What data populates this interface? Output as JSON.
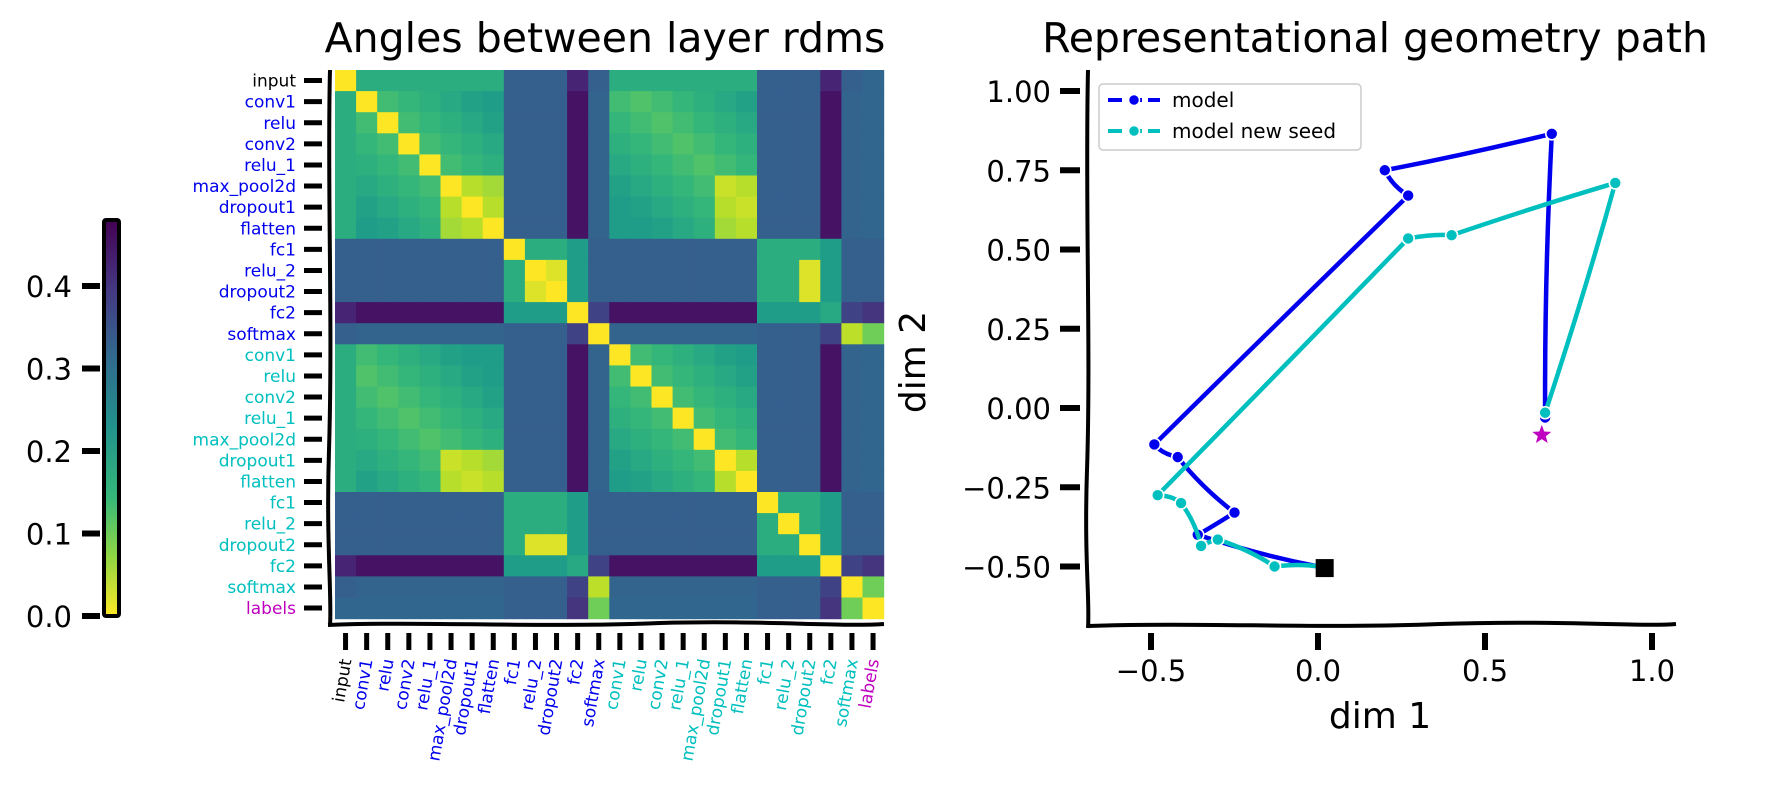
{
  "chart_data": [
    {
      "type": "heatmap",
      "title": "Angles between layer rdms",
      "row_labels": [
        "input",
        "conv1",
        "relu",
        "conv2",
        "relu_1",
        "max_pool2d",
        "dropout1",
        "flatten",
        "fc1",
        "relu_2",
        "dropout2",
        "fc2",
        "softmax",
        "conv1",
        "relu",
        "conv2",
        "relu_1",
        "max_pool2d",
        "dropout1",
        "flatten",
        "fc1",
        "relu_2",
        "dropout2",
        "fc2",
        "softmax",
        "labels"
      ],
      "col_labels": [
        "input",
        "conv1",
        "relu",
        "conv2",
        "relu_1",
        "max_pool2d",
        "dropout1",
        "flatten",
        "fc1",
        "relu_2",
        "dropout2",
        "fc2",
        "softmax",
        "conv1",
        "relu",
        "conv2",
        "relu_1",
        "max_pool2d",
        "dropout1",
        "flatten",
        "fc1",
        "relu_2",
        "dropout2",
        "fc2",
        "softmax",
        "labels"
      ],
      "label_groups": [
        "input",
        "model",
        "model",
        "model",
        "model",
        "model",
        "model",
        "model",
        "model",
        "model",
        "model",
        "model",
        "model",
        "new_seed",
        "new_seed",
        "new_seed",
        "new_seed",
        "new_seed",
        "new_seed",
        "new_seed",
        "new_seed",
        "new_seed",
        "new_seed",
        "new_seed",
        "new_seed",
        "labels"
      ],
      "label_colors": {
        "input": "#000000",
        "model": "#0000ee",
        "new_seed": "#00bfbf",
        "labels": "#c000c0"
      },
      "layer_types": [
        "input",
        "conv",
        "conv",
        "conv",
        "conv",
        "conv",
        "conv",
        "conv",
        "fc",
        "fc",
        "fc",
        "fc2",
        "softmax",
        "conv",
        "conv",
        "conv",
        "conv",
        "conv",
        "conv",
        "conv",
        "fc",
        "fc",
        "fc",
        "fc2",
        "softmax",
        "labels"
      ],
      "colormap": "viridis (reversed: yellow = 0, purple = max)",
      "colorbar": {
        "ticks": [
          "0.0",
          "0.1",
          "0.2",
          "0.3",
          "0.4"
        ],
        "tick_values": [
          0,
          0.1,
          0.2,
          0.3,
          0.4
        ],
        "range": [
          0,
          0.48
        ]
      }
    },
    {
      "type": "line",
      "title": "Representational geometry path",
      "xlabel": "dim 1",
      "ylabel": "dim 2",
      "xlim": [
        -0.68,
        1.08
      ],
      "ylim": [
        -0.68,
        1.07
      ],
      "xticks": [
        "−0.5",
        "0.0",
        "0.5",
        "1.0"
      ],
      "xtick_values": [
        -0.5,
        0,
        0.5,
        1.0
      ],
      "yticks": [
        "−0.50",
        "−0.25",
        "0.00",
        "0.25",
        "0.50",
        "0.75",
        "1.00"
      ],
      "ytick_values": [
        -0.5,
        -0.25,
        0,
        0.25,
        0.5,
        0.75,
        1.0
      ],
      "legend_position": "top-left",
      "series": [
        {
          "name": "model",
          "color": "#0000ee",
          "points": [
            [
              0.0,
              -0.5
            ],
            [
              -0.36,
              -0.4
            ],
            [
              -0.25,
              -0.33
            ],
            [
              -0.42,
              -0.155
            ],
            [
              -0.49,
              -0.115
            ],
            [
              0.27,
              0.67
            ],
            [
              0.2,
              0.75
            ],
            [
              0.7,
              0.865
            ],
            [
              0.68,
              -0.03
            ]
          ]
        },
        {
          "name": "model new seed",
          "color": "#00bfbf",
          "points": [
            [
              0.0,
              -0.5
            ],
            [
              -0.13,
              -0.5
            ],
            [
              -0.3,
              -0.415
            ],
            [
              -0.35,
              -0.435
            ],
            [
              -0.41,
              -0.3
            ],
            [
              -0.48,
              -0.275
            ],
            [
              0.27,
              0.535
            ],
            [
              0.4,
              0.545
            ],
            [
              0.89,
              0.71
            ],
            [
              0.68,
              -0.015
            ]
          ]
        }
      ],
      "markers": [
        {
          "kind": "start",
          "shape": "square",
          "color": "#000000",
          "x": 0.02,
          "y": -0.505
        },
        {
          "kind": "end",
          "shape": "star",
          "color": "#c000c0",
          "x": 0.67,
          "y": -0.085
        }
      ]
    }
  ]
}
